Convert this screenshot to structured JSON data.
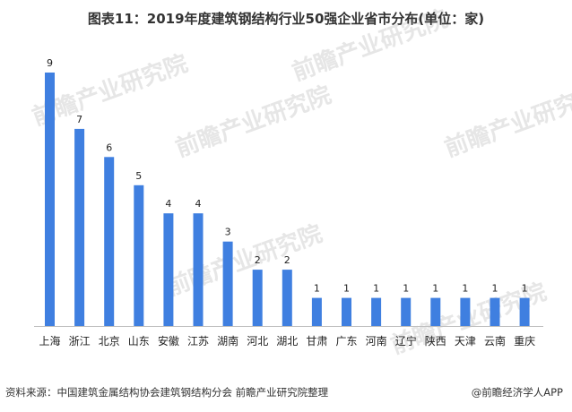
{
  "chart_data": {
    "type": "bar",
    "title": "图表11：2019年度建筑钢结构行业50强企业省市分布(单位：家)",
    "categories": [
      "上海",
      "浙江",
      "北京",
      "山东",
      "安徽",
      "江苏",
      "湖南",
      "河北",
      "湖北",
      "甘肃",
      "广东",
      "河南",
      "辽宁",
      "陕西",
      "天津",
      "云南",
      "重庆"
    ],
    "values": [
      9,
      7,
      6,
      5,
      4,
      4,
      3,
      2,
      2,
      1,
      1,
      1,
      1,
      1,
      1,
      1,
      1
    ],
    "ylim": [
      0,
      9
    ],
    "grid": false,
    "legend": "none",
    "bar_color": "#3f7fe0",
    "axis_color": "#bfbfbf"
  },
  "footer": {
    "source": "资料来源：中国建筑金属结构协会建筑钢结构分会 前瞻产业研究院整理",
    "brand": "@前瞻经济学人APP"
  },
  "watermark": {
    "text": "前瞻产业研究院"
  }
}
